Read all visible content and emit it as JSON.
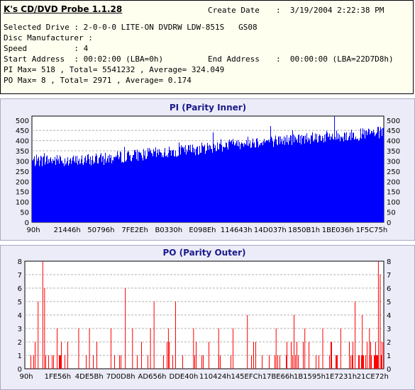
{
  "info": {
    "app_title": "K's CD/DVD Probe 1.1.28",
    "create_date_label": "Create Date",
    "create_date_value": ":  3/19/2004 2:22:38 PM",
    "selected_drive": "Selected Drive : 2-0-0-0 LITE-ON DVDRW LDW-851S   GS08",
    "disc_manufacturer": "Disc Manufacturer :",
    "speed": "Speed          : 4",
    "start_address": "Start Address  : 00:02:00 (LBA=0h)",
    "end_address_label": "End Address",
    "end_address_value": ":  00:00:00 (LBA=22D7D8h)",
    "pi_stats": "PI Max= 518 , Total= 5541232 , Average= 324.049",
    "po_stats": "PO Max= 8 , Total= 2971 , Average= 0.174"
  },
  "chart_data": [
    {
      "type": "bar",
      "title": "PI (Parity Inner)",
      "color": "#0000ff",
      "ylim": [
        0,
        520
      ],
      "yticks": [
        0,
        50,
        100,
        150,
        200,
        250,
        300,
        350,
        400,
        450,
        500
      ],
      "xticks": [
        "90h",
        "21446h",
        "50796h",
        "7FE2Eh",
        "B0330h",
        "E098Eh",
        "114643h",
        "14D037h",
        "1850B1h",
        "1BE036h",
        "1F5C75h"
      ],
      "grid": true,
      "profile": {
        "x": [
          0,
          0.05,
          0.12,
          0.2,
          0.3,
          0.4,
          0.5,
          0.6,
          0.7,
          0.8,
          0.9,
          1.0
        ],
        "y": [
          300,
          305,
          300,
          310,
          330,
          345,
          365,
          390,
          400,
          415,
          425,
          440
        ]
      },
      "peak": 518
    },
    {
      "type": "bar",
      "title": "PO (Parity Outer)",
      "color": "#ff0000",
      "ylim": [
        0,
        8
      ],
      "yticks": [
        0,
        1,
        2,
        3,
        4,
        5,
        6,
        7,
        8
      ],
      "xticks": [
        "90h",
        "1FE56h",
        "4DE5Bh",
        "7D0D8h",
        "AD656h",
        "DDE40h",
        "110424h",
        "145EFCh",
        "17BE66h",
        "1B1595h",
        "1E7231h",
        "21CE72h"
      ],
      "grid": true,
      "spikes": [
        {
          "x": 0.037,
          "y": 5
        },
        {
          "x": 0.05,
          "y": 8
        },
        {
          "x": 0.055,
          "y": 6
        },
        {
          "x": 0.09,
          "y": 3
        },
        {
          "x": 0.15,
          "y": 3
        },
        {
          "x": 0.18,
          "y": 3
        },
        {
          "x": 0.24,
          "y": 3
        },
        {
          "x": 0.28,
          "y": 6
        },
        {
          "x": 0.3,
          "y": 3
        },
        {
          "x": 0.35,
          "y": 3
        },
        {
          "x": 0.36,
          "y": 5
        },
        {
          "x": 0.4,
          "y": 3
        },
        {
          "x": 0.42,
          "y": 5
        },
        {
          "x": 0.47,
          "y": 3
        },
        {
          "x": 0.54,
          "y": 3
        },
        {
          "x": 0.58,
          "y": 3
        },
        {
          "x": 0.62,
          "y": 4
        },
        {
          "x": 0.7,
          "y": 3
        },
        {
          "x": 0.75,
          "y": 4
        },
        {
          "x": 0.78,
          "y": 3
        },
        {
          "x": 0.83,
          "y": 3
        },
        {
          "x": 0.88,
          "y": 3
        },
        {
          "x": 0.92,
          "y": 5
        },
        {
          "x": 0.94,
          "y": 4
        },
        {
          "x": 0.96,
          "y": 3
        },
        {
          "x": 0.985,
          "y": 8
        },
        {
          "x": 0.99,
          "y": 7
        }
      ],
      "dense_tail_start": 0.9
    }
  ]
}
